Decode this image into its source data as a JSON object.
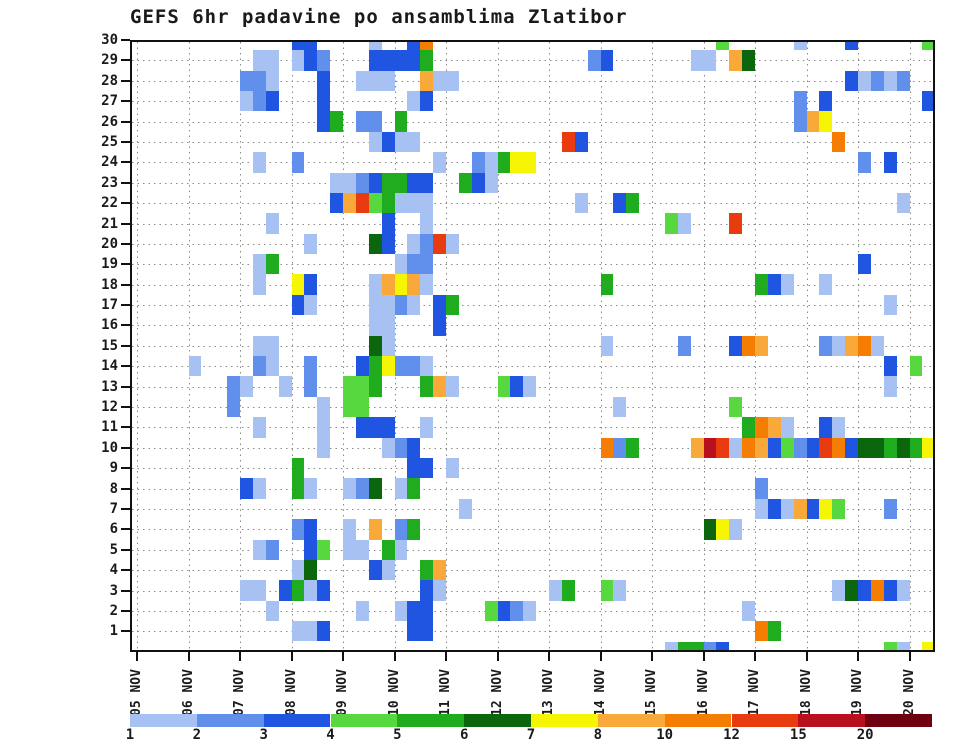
{
  "title": "GEFS 6hr padavine po ansamblima Zlatibor",
  "chart_data": {
    "type": "heatmap",
    "title": "GEFS 6hr padavine po ansamblima Zlatibor",
    "xlabel_unit": "date (6-hour steps)",
    "ylabel_unit": "ensemble member",
    "x_tick_labels": [
      "05 NOV",
      "06 NOV",
      "07 NOV",
      "08 NOV",
      "09 NOV",
      "10 NOV",
      "11 NOV",
      "12 NOV",
      "13 NOV",
      "14 NOV",
      "15 NOV",
      "16 NOV",
      "17 NOV",
      "18 NOV",
      "19 NOV",
      "20 NOV"
    ],
    "y_tick_labels": [
      "30",
      "29",
      "28",
      "27",
      "26",
      "25",
      "24",
      "23",
      "22",
      "21",
      "20",
      "19",
      "18",
      "17",
      "16",
      "15",
      "14",
      "13",
      "12",
      "11",
      "10",
      "9",
      "8",
      "7",
      "6",
      "5",
      "4",
      "3",
      "2",
      "1"
    ],
    "grid": "dotted",
    "colorbar": {
      "labels": [
        "1",
        "2",
        "3",
        "4",
        "5",
        "6",
        "7",
        "8",
        "10",
        "12",
        "15",
        "20"
      ],
      "colors": [
        "#a6c1f2",
        "#6090ec",
        "#1f55e0",
        "#56d83e",
        "#1fac1f",
        "#0c660e",
        "#f6f604",
        "#f9a83a",
        "#f47d02",
        "#e83c10",
        "#b8101e",
        "#6f0010"
      ]
    },
    "cells_format": "[member, sixhour_step_from_05NOV00, precip_level_index_1_to_12]",
    "cells": [
      [
        30,
        12,
        3
      ],
      [
        30,
        13,
        3
      ],
      [
        30,
        18,
        1
      ],
      [
        30,
        21,
        3
      ],
      [
        30,
        22,
        9
      ],
      [
        30,
        45,
        4
      ],
      [
        30,
        51,
        1
      ],
      [
        30,
        55,
        3
      ],
      [
        30,
        61,
        4
      ],
      [
        29,
        9,
        1
      ],
      [
        29,
        10,
        1
      ],
      [
        29,
        12,
        1
      ],
      [
        29,
        13,
        3
      ],
      [
        29,
        14,
        2
      ],
      [
        29,
        18,
        3
      ],
      [
        29,
        19,
        3
      ],
      [
        29,
        20,
        3
      ],
      [
        29,
        21,
        3
      ],
      [
        29,
        22,
        5
      ],
      [
        29,
        35,
        2
      ],
      [
        29,
        36,
        3
      ],
      [
        29,
        43,
        1
      ],
      [
        29,
        44,
        1
      ],
      [
        29,
        46,
        8
      ],
      [
        29,
        47,
        6
      ],
      [
        28,
        8,
        2
      ],
      [
        28,
        9,
        2
      ],
      [
        28,
        10,
        1
      ],
      [
        28,
        14,
        3
      ],
      [
        28,
        17,
        1
      ],
      [
        28,
        18,
        1
      ],
      [
        28,
        19,
        1
      ],
      [
        28,
        22,
        8
      ],
      [
        28,
        23,
        1
      ],
      [
        28,
        24,
        1
      ],
      [
        28,
        55,
        3
      ],
      [
        28,
        56,
        1
      ],
      [
        28,
        57,
        2
      ],
      [
        28,
        58,
        1
      ],
      [
        28,
        59,
        2
      ],
      [
        27,
        8,
        1
      ],
      [
        27,
        9,
        2
      ],
      [
        27,
        10,
        3
      ],
      [
        27,
        14,
        3
      ],
      [
        27,
        21,
        1
      ],
      [
        27,
        22,
        3
      ],
      [
        27,
        51,
        2
      ],
      [
        27,
        53,
        3
      ],
      [
        27,
        61,
        3
      ],
      [
        26,
        14,
        3
      ],
      [
        26,
        15,
        5
      ],
      [
        26,
        17,
        2
      ],
      [
        26,
        18,
        2
      ],
      [
        26,
        20,
        5
      ],
      [
        26,
        51,
        2
      ],
      [
        26,
        52,
        8
      ],
      [
        26,
        53,
        7
      ],
      [
        25,
        18,
        1
      ],
      [
        25,
        19,
        3
      ],
      [
        25,
        20,
        1
      ],
      [
        25,
        21,
        1
      ],
      [
        25,
        33,
        10
      ],
      [
        25,
        34,
        3
      ],
      [
        25,
        54,
        9
      ],
      [
        24,
        9,
        1
      ],
      [
        24,
        12,
        2
      ],
      [
        24,
        23,
        1
      ],
      [
        24,
        26,
        2
      ],
      [
        24,
        27,
        1
      ],
      [
        24,
        28,
        5
      ],
      [
        24,
        29,
        7
      ],
      [
        24,
        30,
        7
      ],
      [
        24,
        56,
        2
      ],
      [
        24,
        58,
        3
      ],
      [
        23,
        15,
        1
      ],
      [
        23,
        16,
        1
      ],
      [
        23,
        17,
        2
      ],
      [
        23,
        18,
        3
      ],
      [
        23,
        19,
        5
      ],
      [
        23,
        20,
        5
      ],
      [
        23,
        21,
        3
      ],
      [
        23,
        22,
        3
      ],
      [
        23,
        25,
        5
      ],
      [
        23,
        26,
        3
      ],
      [
        23,
        27,
        1
      ],
      [
        22,
        15,
        3
      ],
      [
        22,
        16,
        8
      ],
      [
        22,
        17,
        10
      ],
      [
        22,
        18,
        4
      ],
      [
        22,
        19,
        5
      ],
      [
        22,
        20,
        1
      ],
      [
        22,
        21,
        1
      ],
      [
        22,
        22,
        1
      ],
      [
        22,
        34,
        1
      ],
      [
        22,
        37,
        3
      ],
      [
        22,
        38,
        5
      ],
      [
        22,
        59,
        1
      ],
      [
        21,
        10,
        1
      ],
      [
        21,
        19,
        3
      ],
      [
        21,
        22,
        1
      ],
      [
        21,
        41,
        4
      ],
      [
        21,
        42,
        1
      ],
      [
        21,
        46,
        10
      ],
      [
        20,
        13,
        1
      ],
      [
        20,
        18,
        6
      ],
      [
        20,
        19,
        3
      ],
      [
        20,
        21,
        1
      ],
      [
        20,
        22,
        2
      ],
      [
        20,
        23,
        10
      ],
      [
        20,
        24,
        1
      ],
      [
        19,
        9,
        1
      ],
      [
        19,
        10,
        5
      ],
      [
        19,
        20,
        1
      ],
      [
        19,
        21,
        2
      ],
      [
        19,
        22,
        2
      ],
      [
        19,
        56,
        3
      ],
      [
        18,
        9,
        1
      ],
      [
        18,
        12,
        7
      ],
      [
        18,
        13,
        3
      ],
      [
        18,
        18,
        1
      ],
      [
        18,
        19,
        8
      ],
      [
        18,
        20,
        7
      ],
      [
        18,
        21,
        8
      ],
      [
        18,
        22,
        1
      ],
      [
        18,
        36,
        5
      ],
      [
        18,
        48,
        5
      ],
      [
        18,
        49,
        3
      ],
      [
        18,
        50,
        1
      ],
      [
        18,
        53,
        1
      ],
      [
        17,
        12,
        3
      ],
      [
        17,
        13,
        1
      ],
      [
        17,
        18,
        1
      ],
      [
        17,
        19,
        1
      ],
      [
        17,
        20,
        2
      ],
      [
        17,
        21,
        1
      ],
      [
        17,
        23,
        3
      ],
      [
        17,
        24,
        5
      ],
      [
        17,
        58,
        1
      ],
      [
        16,
        18,
        1
      ],
      [
        16,
        19,
        1
      ],
      [
        16,
        23,
        3
      ],
      [
        15,
        9,
        1
      ],
      [
        15,
        10,
        1
      ],
      [
        15,
        18,
        6
      ],
      [
        15,
        19,
        1
      ],
      [
        15,
        36,
        1
      ],
      [
        15,
        42,
        2
      ],
      [
        15,
        46,
        3
      ],
      [
        15,
        47,
        9
      ],
      [
        15,
        48,
        8
      ],
      [
        15,
        53,
        2
      ],
      [
        15,
        54,
        1
      ],
      [
        15,
        55,
        8
      ],
      [
        15,
        56,
        9
      ],
      [
        15,
        57,
        1
      ],
      [
        14,
        4,
        1
      ],
      [
        14,
        9,
        2
      ],
      [
        14,
        10,
        1
      ],
      [
        14,
        13,
        2
      ],
      [
        14,
        17,
        3
      ],
      [
        14,
        18,
        5
      ],
      [
        14,
        19,
        7
      ],
      [
        14,
        20,
        2
      ],
      [
        14,
        21,
        2
      ],
      [
        14,
        22,
        1
      ],
      [
        14,
        58,
        3
      ],
      [
        14,
        60,
        4
      ],
      [
        13,
        7,
        2
      ],
      [
        13,
        8,
        1
      ],
      [
        13,
        11,
        1
      ],
      [
        13,
        13,
        2
      ],
      [
        13,
        16,
        4
      ],
      [
        13,
        17,
        4
      ],
      [
        13,
        18,
        5
      ],
      [
        13,
        22,
        5
      ],
      [
        13,
        23,
        8
      ],
      [
        13,
        24,
        1
      ],
      [
        13,
        28,
        4
      ],
      [
        13,
        29,
        3
      ],
      [
        13,
        30,
        1
      ],
      [
        13,
        58,
        1
      ],
      [
        12,
        7,
        2
      ],
      [
        12,
        14,
        1
      ],
      [
        12,
        16,
        4
      ],
      [
        12,
        17,
        4
      ],
      [
        12,
        37,
        1
      ],
      [
        12,
        46,
        4
      ],
      [
        11,
        9,
        1
      ],
      [
        11,
        14,
        1
      ],
      [
        11,
        17,
        3
      ],
      [
        11,
        18,
        3
      ],
      [
        11,
        19,
        3
      ],
      [
        11,
        22,
        1
      ],
      [
        11,
        47,
        5
      ],
      [
        11,
        48,
        9
      ],
      [
        11,
        49,
        8
      ],
      [
        11,
        50,
        1
      ],
      [
        11,
        53,
        3
      ],
      [
        11,
        54,
        1
      ],
      [
        10,
        14,
        1
      ],
      [
        10,
        19,
        1
      ],
      [
        10,
        20,
        2
      ],
      [
        10,
        21,
        3
      ],
      [
        10,
        36,
        9
      ],
      [
        10,
        37,
        2
      ],
      [
        10,
        38,
        5
      ],
      [
        10,
        43,
        8
      ],
      [
        10,
        44,
        11
      ],
      [
        10,
        45,
        10
      ],
      [
        10,
        46,
        1
      ],
      [
        10,
        47,
        9
      ],
      [
        10,
        48,
        8
      ],
      [
        10,
        49,
        3
      ],
      [
        10,
        50,
        4
      ],
      [
        10,
        51,
        2
      ],
      [
        10,
        52,
        3
      ],
      [
        10,
        53,
        10
      ],
      [
        10,
        54,
        9
      ],
      [
        10,
        55,
        3
      ],
      [
        10,
        56,
        6
      ],
      [
        10,
        57,
        6
      ],
      [
        10,
        58,
        5
      ],
      [
        10,
        59,
        6
      ],
      [
        10,
        60,
        5
      ],
      [
        10,
        61,
        7
      ],
      [
        9,
        12,
        5
      ],
      [
        9,
        21,
        3
      ],
      [
        9,
        22,
        3
      ],
      [
        9,
        24,
        1
      ],
      [
        8,
        8,
        3
      ],
      [
        8,
        9,
        1
      ],
      [
        8,
        12,
        5
      ],
      [
        8,
        13,
        1
      ],
      [
        8,
        16,
        1
      ],
      [
        8,
        17,
        2
      ],
      [
        8,
        18,
        6
      ],
      [
        8,
        20,
        1
      ],
      [
        8,
        21,
        5
      ],
      [
        8,
        48,
        2
      ],
      [
        7,
        25,
        1
      ],
      [
        7,
        48,
        1
      ],
      [
        7,
        49,
        3
      ],
      [
        7,
        50,
        1
      ],
      [
        7,
        51,
        8
      ],
      [
        7,
        52,
        3
      ],
      [
        7,
        53,
        7
      ],
      [
        7,
        54,
        4
      ],
      [
        7,
        58,
        2
      ],
      [
        6,
        12,
        2
      ],
      [
        6,
        13,
        3
      ],
      [
        6,
        16,
        1
      ],
      [
        6,
        18,
        8
      ],
      [
        6,
        20,
        2
      ],
      [
        6,
        21,
        5
      ],
      [
        6,
        44,
        6
      ],
      [
        6,
        45,
        7
      ],
      [
        6,
        46,
        1
      ],
      [
        5,
        9,
        1
      ],
      [
        5,
        10,
        2
      ],
      [
        5,
        13,
        3
      ],
      [
        5,
        14,
        4
      ],
      [
        5,
        16,
        1
      ],
      [
        5,
        17,
        1
      ],
      [
        5,
        19,
        5
      ],
      [
        5,
        20,
        1
      ],
      [
        4,
        12,
        1
      ],
      [
        4,
        13,
        6
      ],
      [
        4,
        18,
        3
      ],
      [
        4,
        19,
        1
      ],
      [
        4,
        22,
        5
      ],
      [
        4,
        23,
        8
      ],
      [
        3,
        8,
        1
      ],
      [
        3,
        9,
        1
      ],
      [
        3,
        11,
        3
      ],
      [
        3,
        12,
        5
      ],
      [
        3,
        13,
        1
      ],
      [
        3,
        14,
        3
      ],
      [
        3,
        22,
        3
      ],
      [
        3,
        23,
        1
      ],
      [
        3,
        32,
        1
      ],
      [
        3,
        33,
        5
      ],
      [
        3,
        36,
        4
      ],
      [
        3,
        37,
        1
      ],
      [
        3,
        54,
        1
      ],
      [
        3,
        55,
        6
      ],
      [
        3,
        56,
        3
      ],
      [
        3,
        57,
        9
      ],
      [
        3,
        58,
        3
      ],
      [
        3,
        59,
        1
      ],
      [
        2,
        10,
        1
      ],
      [
        2,
        17,
        1
      ],
      [
        2,
        20,
        1
      ],
      [
        2,
        21,
        3
      ],
      [
        2,
        22,
        3
      ],
      [
        2,
        27,
        4
      ],
      [
        2,
        28,
        3
      ],
      [
        2,
        29,
        2
      ],
      [
        2,
        30,
        1
      ],
      [
        2,
        47,
        1
      ],
      [
        1,
        12,
        1
      ],
      [
        1,
        13,
        1
      ],
      [
        1,
        14,
        3
      ],
      [
        1,
        21,
        3
      ],
      [
        1,
        22,
        3
      ],
      [
        1,
        48,
        9
      ],
      [
        1,
        49,
        5
      ],
      [
        0,
        41,
        1
      ],
      [
        0,
        42,
        5
      ],
      [
        0,
        43,
        5
      ],
      [
        0,
        44,
        2
      ],
      [
        0,
        45,
        3
      ],
      [
        0,
        58,
        4
      ],
      [
        0,
        59,
        1
      ],
      [
        0,
        61,
        7
      ]
    ]
  }
}
